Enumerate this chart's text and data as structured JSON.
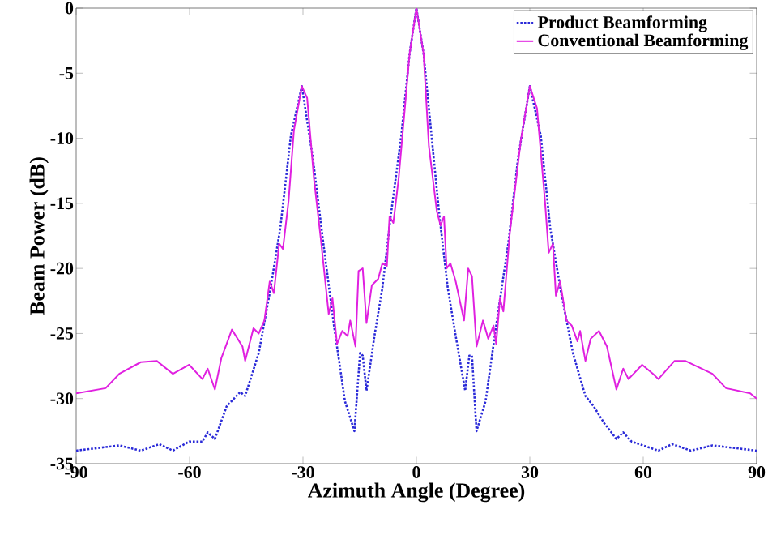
{
  "chart_data": {
    "type": "line",
    "xlabel": "Azimuth Angle (Degree)",
    "ylabel": "Beam Power (dB)",
    "xlim": [
      -90,
      90
    ],
    "ylim": [
      -35,
      0
    ],
    "xticks": [
      -90,
      -60,
      -30,
      0,
      30,
      60,
      90
    ],
    "yticks": [
      -35,
      -30,
      -25,
      -20,
      -15,
      -10,
      -5,
      0
    ],
    "legend": "top right",
    "series": [
      {
        "name": "Product Beamforming",
        "color": "#2a2ad8",
        "line_style": "dotted",
        "x": [
          -90,
          -78.6,
          -72.9,
          -68.0,
          -64.4,
          -60.1,
          -56.6,
          -55.2,
          -53.3,
          -50.2,
          -46.6,
          -45.3,
          -41.7,
          -38.8,
          -36.0,
          -33.2,
          -30.3,
          -27.4,
          -24.6,
          -21.8,
          -18.9,
          -16.4,
          -14.9,
          -14.2,
          -13.2,
          -11.1,
          -9.0,
          -6.8,
          -4.0,
          -1.8,
          0,
          1.9,
          4.0,
          6.1,
          8.3,
          10.4,
          12.9,
          14.0,
          14.7,
          15.9,
          18.3,
          21.1,
          24.3,
          26.9,
          30,
          32.9,
          35.4,
          38.3,
          41.4,
          44.7,
          46.9,
          49.7,
          52.9,
          54.7,
          56.9,
          64.0,
          67.6,
          72.6,
          78.3,
          90
        ],
        "values": [
          -34.0,
          -33.6,
          -34.0,
          -33.5,
          -34.0,
          -33.3,
          -33.3,
          -32.6,
          -33.1,
          -30.6,
          -29.5,
          -29.8,
          -26.5,
          -21.9,
          -16.9,
          -9.8,
          -6.0,
          -11.5,
          -18.1,
          -24.4,
          -30.2,
          -32.5,
          -26.5,
          -26.7,
          -29.4,
          -25.2,
          -21.5,
          -16.0,
          -9.8,
          -3.5,
          0,
          -3.5,
          -9.8,
          -16.0,
          -21.5,
          -25.2,
          -29.4,
          -26.7,
          -26.7,
          -32.5,
          -30.2,
          -24.4,
          -18.1,
          -11.5,
          -6.0,
          -9.8,
          -16.9,
          -21.9,
          -26.5,
          -29.8,
          -30.6,
          -31.9,
          -33.1,
          -32.6,
          -33.3,
          -34.0,
          -33.5,
          -34.0,
          -33.6,
          -34.0
        ]
      },
      {
        "name": "Conventional Beamforming",
        "color": "#e020e0",
        "line_style": "solid",
        "x": [
          -90,
          -82.2,
          -78.6,
          -72.9,
          -68.7,
          -64.4,
          -60.1,
          -56.6,
          -55.2,
          -53.3,
          -51.6,
          -48.8,
          -46.0,
          -45.3,
          -43.1,
          -41.7,
          -40.2,
          -38.8,
          -37.7,
          -36.3,
          -35.3,
          -33.8,
          -32.4,
          -30.3,
          -28.9,
          -27.1,
          -25.3,
          -23.2,
          -22.2,
          -21.0,
          -19.6,
          -18.2,
          -17.5,
          -16.1,
          -15.3,
          -14.2,
          -13.2,
          -11.8,
          -10.1,
          -9.0,
          -7.8,
          -7.1,
          -6.1,
          -4.7,
          -3.3,
          -1.8,
          0,
          1.9,
          3.3,
          5.4,
          6.4,
          7.3,
          8.0,
          9.0,
          10.4,
          12.6,
          13.7,
          14.7,
          15.9,
          17.6,
          19.0,
          20.4,
          21.1,
          22.1,
          23.0,
          24.7,
          27.6,
          30,
          31.9,
          34.0,
          35.0,
          36.1,
          36.9,
          38.0,
          39.7,
          41.1,
          42.6,
          43.3,
          44.7,
          46.1,
          48.3,
          50.4,
          52.9,
          54.7,
          56.1,
          59.7,
          62.6,
          64.0,
          68.3,
          71.1,
          78.3,
          81.9,
          88.3,
          90
        ],
        "values": [
          -29.6,
          -29.2,
          -28.1,
          -27.2,
          -27.1,
          -28.1,
          -27.4,
          -28.5,
          -27.7,
          -29.3,
          -26.9,
          -24.7,
          -26.0,
          -27.1,
          -24.6,
          -25.0,
          -24.0,
          -21.0,
          -21.9,
          -18.1,
          -18.5,
          -14.8,
          -9.4,
          -6.0,
          -6.9,
          -13.1,
          -17.7,
          -23.5,
          -22.3,
          -25.8,
          -24.8,
          -25.2,
          -24.0,
          -26.0,
          -20.2,
          -20.0,
          -24.2,
          -21.3,
          -20.8,
          -19.6,
          -19.8,
          -16.0,
          -16.5,
          -13.1,
          -8.5,
          -3.5,
          0,
          -3.5,
          -10.6,
          -15.6,
          -16.7,
          -16.0,
          -20.0,
          -19.6,
          -21.0,
          -24.0,
          -20.0,
          -20.6,
          -26.0,
          -24.0,
          -25.4,
          -24.4,
          -25.8,
          -22.3,
          -23.3,
          -17.3,
          -10.2,
          -6.0,
          -7.7,
          -14.8,
          -18.8,
          -18.1,
          -22.1,
          -21.0,
          -24.0,
          -24.4,
          -25.6,
          -24.8,
          -27.1,
          -25.4,
          -24.8,
          -26.0,
          -29.3,
          -27.7,
          -28.5,
          -27.4,
          -28.1,
          -28.5,
          -27.1,
          -27.1,
          -28.1,
          -29.2,
          -29.6,
          -30.0
        ]
      }
    ]
  }
}
